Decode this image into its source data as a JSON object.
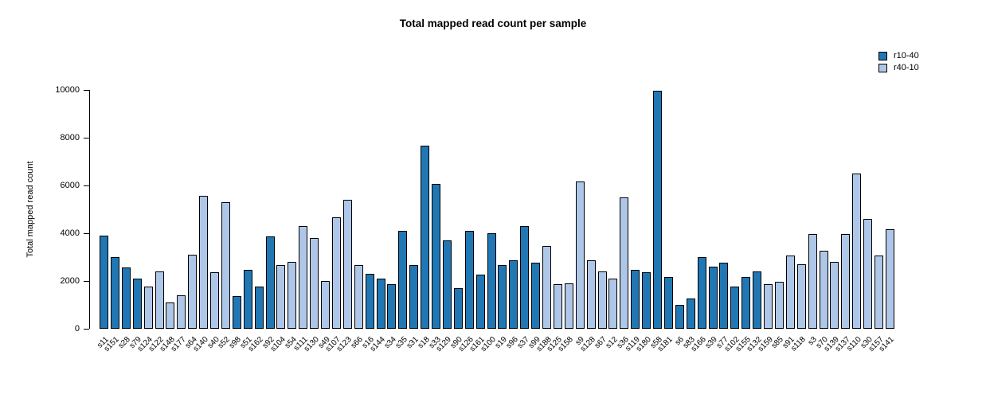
{
  "chart_data": {
    "type": "bar",
    "title": "Total mapped read count per sample",
    "ylabel": "Total mapped read count",
    "xlabel": "",
    "ylim": [
      0,
      10000
    ],
    "yticks": [
      0,
      2000,
      4000,
      6000,
      8000,
      10000
    ],
    "grid": false,
    "legend_position": "top-right",
    "legend": [
      {
        "name": "r10-40",
        "color": "#2077B4"
      },
      {
        "name": "r40-10",
        "color": "#AEC7E8"
      }
    ],
    "bars": [
      {
        "label": "s11",
        "value": 3900,
        "group": "r10-40"
      },
      {
        "label": "s151",
        "value": 3000,
        "group": "r10-40"
      },
      {
        "label": "s28",
        "value": 2550,
        "group": "r10-40"
      },
      {
        "label": "s79",
        "value": 2100,
        "group": "r10-40"
      },
      {
        "label": "s124",
        "value": 1750,
        "group": "r40-10"
      },
      {
        "label": "s122",
        "value": 2400,
        "group": "r40-10"
      },
      {
        "label": "s148",
        "value": 1100,
        "group": "r40-10"
      },
      {
        "label": "s177",
        "value": 1400,
        "group": "r40-10"
      },
      {
        "label": "s64",
        "value": 3100,
        "group": "r40-10"
      },
      {
        "label": "s140",
        "value": 5550,
        "group": "r40-10"
      },
      {
        "label": "s40",
        "value": 2350,
        "group": "r40-10"
      },
      {
        "label": "s52",
        "value": 5300,
        "group": "r40-10"
      },
      {
        "label": "s98",
        "value": 1350,
        "group": "r10-40"
      },
      {
        "label": "s51",
        "value": 2450,
        "group": "r10-40"
      },
      {
        "label": "s162",
        "value": 1750,
        "group": "r10-40"
      },
      {
        "label": "s92",
        "value": 3850,
        "group": "r10-40"
      },
      {
        "label": "s104",
        "value": 2650,
        "group": "r40-10"
      },
      {
        "label": "s54",
        "value": 2800,
        "group": "r40-10"
      },
      {
        "label": "s111",
        "value": 4300,
        "group": "r40-10"
      },
      {
        "label": "s130",
        "value": 3800,
        "group": "r40-10"
      },
      {
        "label": "s49",
        "value": 2000,
        "group": "r40-10"
      },
      {
        "label": "s107",
        "value": 4650,
        "group": "r40-10"
      },
      {
        "label": "s123",
        "value": 5400,
        "group": "r40-10"
      },
      {
        "label": "s66",
        "value": 2650,
        "group": "r40-10"
      },
      {
        "label": "s16",
        "value": 2300,
        "group": "r10-40"
      },
      {
        "label": "s144",
        "value": 2100,
        "group": "r10-40"
      },
      {
        "label": "s34",
        "value": 1850,
        "group": "r10-40"
      },
      {
        "label": "s35",
        "value": 4100,
        "group": "r10-40"
      },
      {
        "label": "s31",
        "value": 2650,
        "group": "r10-40"
      },
      {
        "label": "s18",
        "value": 7650,
        "group": "r10-40"
      },
      {
        "label": "s33",
        "value": 6050,
        "group": "r10-40"
      },
      {
        "label": "s129",
        "value": 3700,
        "group": "r10-40"
      },
      {
        "label": "s90",
        "value": 1700,
        "group": "r10-40"
      },
      {
        "label": "s126",
        "value": 4100,
        "group": "r10-40"
      },
      {
        "label": "s161",
        "value": 2250,
        "group": "r10-40"
      },
      {
        "label": "s100",
        "value": 4000,
        "group": "r10-40"
      },
      {
        "label": "s19",
        "value": 2650,
        "group": "r10-40"
      },
      {
        "label": "s96",
        "value": 2850,
        "group": "r10-40"
      },
      {
        "label": "s37",
        "value": 4300,
        "group": "r10-40"
      },
      {
        "label": "s99",
        "value": 2750,
        "group": "r10-40"
      },
      {
        "label": "s188",
        "value": 3450,
        "group": "r40-10"
      },
      {
        "label": "s125",
        "value": 1850,
        "group": "r40-10"
      },
      {
        "label": "s158",
        "value": 1900,
        "group": "r40-10"
      },
      {
        "label": "s9",
        "value": 6150,
        "group": "r40-10"
      },
      {
        "label": "s128",
        "value": 2850,
        "group": "r40-10"
      },
      {
        "label": "s67",
        "value": 2400,
        "group": "r40-10"
      },
      {
        "label": "s12",
        "value": 2100,
        "group": "r40-10"
      },
      {
        "label": "s36",
        "value": 5500,
        "group": "r40-10"
      },
      {
        "label": "s119",
        "value": 2450,
        "group": "r10-40"
      },
      {
        "label": "s180",
        "value": 2350,
        "group": "r10-40"
      },
      {
        "label": "s58",
        "value": 9950,
        "group": "r10-40"
      },
      {
        "label": "s181",
        "value": 2150,
        "group": "r10-40"
      },
      {
        "label": "s6",
        "value": 1000,
        "group": "r10-40"
      },
      {
        "label": "s83",
        "value": 1250,
        "group": "r10-40"
      },
      {
        "label": "s166",
        "value": 3000,
        "group": "r10-40"
      },
      {
        "label": "s39",
        "value": 2600,
        "group": "r10-40"
      },
      {
        "label": "s77",
        "value": 2750,
        "group": "r10-40"
      },
      {
        "label": "s102",
        "value": 1750,
        "group": "r10-40"
      },
      {
        "label": "s155",
        "value": 2150,
        "group": "r10-40"
      },
      {
        "label": "s132",
        "value": 2400,
        "group": "r10-40"
      },
      {
        "label": "s159",
        "value": 1850,
        "group": "r40-10"
      },
      {
        "label": "s85",
        "value": 1950,
        "group": "r40-10"
      },
      {
        "label": "s91",
        "value": 3050,
        "group": "r40-10"
      },
      {
        "label": "s118",
        "value": 2700,
        "group": "r40-10"
      },
      {
        "label": "s3",
        "value": 3950,
        "group": "r40-10"
      },
      {
        "label": "s70",
        "value": 3250,
        "group": "r40-10"
      },
      {
        "label": "s139",
        "value": 2800,
        "group": "r40-10"
      },
      {
        "label": "s137",
        "value": 3950,
        "group": "r40-10"
      },
      {
        "label": "s110",
        "value": 6500,
        "group": "r40-10"
      },
      {
        "label": "s30",
        "value": 4600,
        "group": "r40-10"
      },
      {
        "label": "s157",
        "value": 3050,
        "group": "r40-10"
      },
      {
        "label": "s141",
        "value": 4150,
        "group": "r40-10"
      }
    ]
  }
}
